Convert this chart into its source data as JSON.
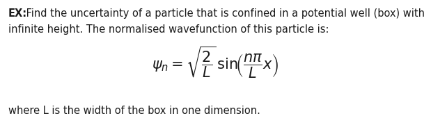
{
  "line1_bold": "EX:",
  "line1_regular": " Find the uncertainty of a particle that is confined in a potential well (box) with",
  "line2": "infinite height. The normalised wavefunction of this particle is:",
  "formula": "$\\psi_n = \\sqrt{\\dfrac{2}{L}}\\,\\mathrm{sin}\\!\\left(\\dfrac{n\\pi}{L}x\\right)$",
  "line3": "where L is the width of the box in one dimension.",
  "background_color": "#ffffff",
  "text_color": "#1a1a1a",
  "fontsize_main": 10.5,
  "fontsize_formula": 15
}
